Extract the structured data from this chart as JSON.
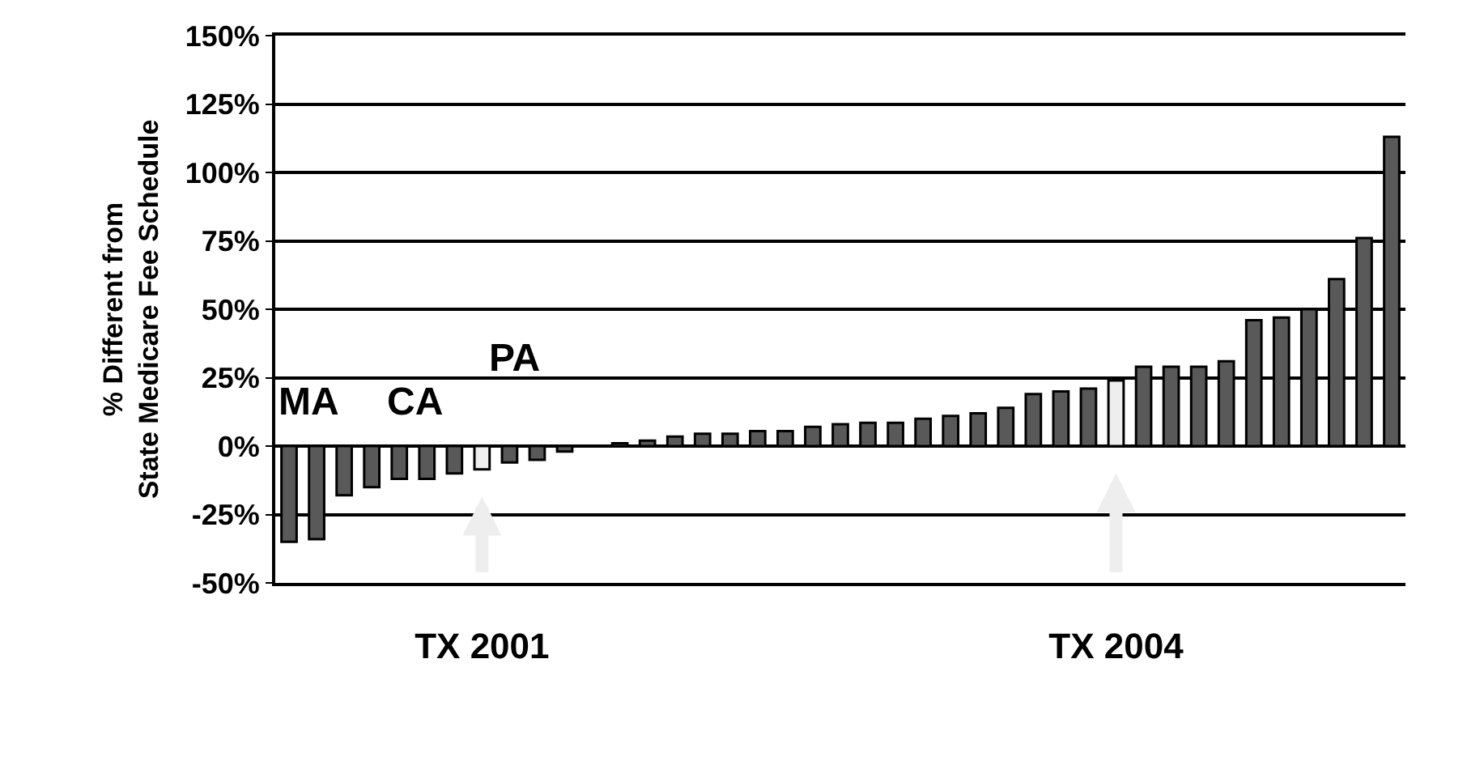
{
  "chart_data": {
    "type": "bar",
    "ylabel": "% Different from\nState Medicare Fee Schedule",
    "categories": [
      null,
      null,
      null,
      null,
      null,
      null,
      null,
      "TX 2001",
      null,
      null,
      null,
      null,
      null,
      null,
      null,
      null,
      null,
      null,
      null,
      null,
      null,
      null,
      null,
      null,
      null,
      null,
      null,
      null,
      null,
      null,
      "TX 2004",
      null,
      null,
      null,
      null,
      null,
      null,
      null,
      null,
      null,
      null
    ],
    "values": [
      -35,
      -34,
      -18,
      -15,
      -12,
      -12,
      -10,
      -8.5,
      -6,
      -5,
      -2,
      null,
      1,
      2,
      3.5,
      4.5,
      4.5,
      5.5,
      5.5,
      7,
      8,
      8.5,
      8.5,
      10,
      11,
      12,
      14,
      19,
      20,
      21,
      24,
      29,
      29,
      29,
      31,
      46,
      47,
      50,
      61,
      76,
      113
    ],
    "colors": [
      "#595959",
      "#595959",
      "#595959",
      "#595959",
      "#595959",
      "#595959",
      "#595959",
      "#eeeeee",
      "#595959",
      "#595959",
      "#595959",
      "#595959",
      "#595959",
      "#595959",
      "#595959",
      "#595959",
      "#595959",
      "#595959",
      "#595959",
      "#595959",
      "#595959",
      "#595959",
      "#595959",
      "#595959",
      "#595959",
      "#595959",
      "#595959",
      "#595959",
      "#595959",
      "#595959",
      "#eeeeee",
      "#595959",
      "#595959",
      "#595959",
      "#595959",
      "#595959",
      "#595959",
      "#595959",
      "#595959",
      "#595959",
      "#595959"
    ],
    "annotations": [
      "MA",
      "CA",
      "PA"
    ],
    "ylim": [
      -50,
      150
    ],
    "yticks": [
      {
        "value": -50,
        "label": "-50%"
      },
      {
        "value": -25,
        "label": "-25%"
      },
      {
        "value": 0,
        "label": "0%"
      },
      {
        "value": 25,
        "label": "25%"
      },
      {
        "value": 50,
        "label": "50%"
      },
      {
        "value": 75,
        "label": "75%"
      },
      {
        "value": 100,
        "label": "100%"
      },
      {
        "value": 125,
        "label": "125%"
      },
      {
        "value": 150,
        "label": "150%"
      }
    ],
    "grid": "y",
    "legend": false
  }
}
